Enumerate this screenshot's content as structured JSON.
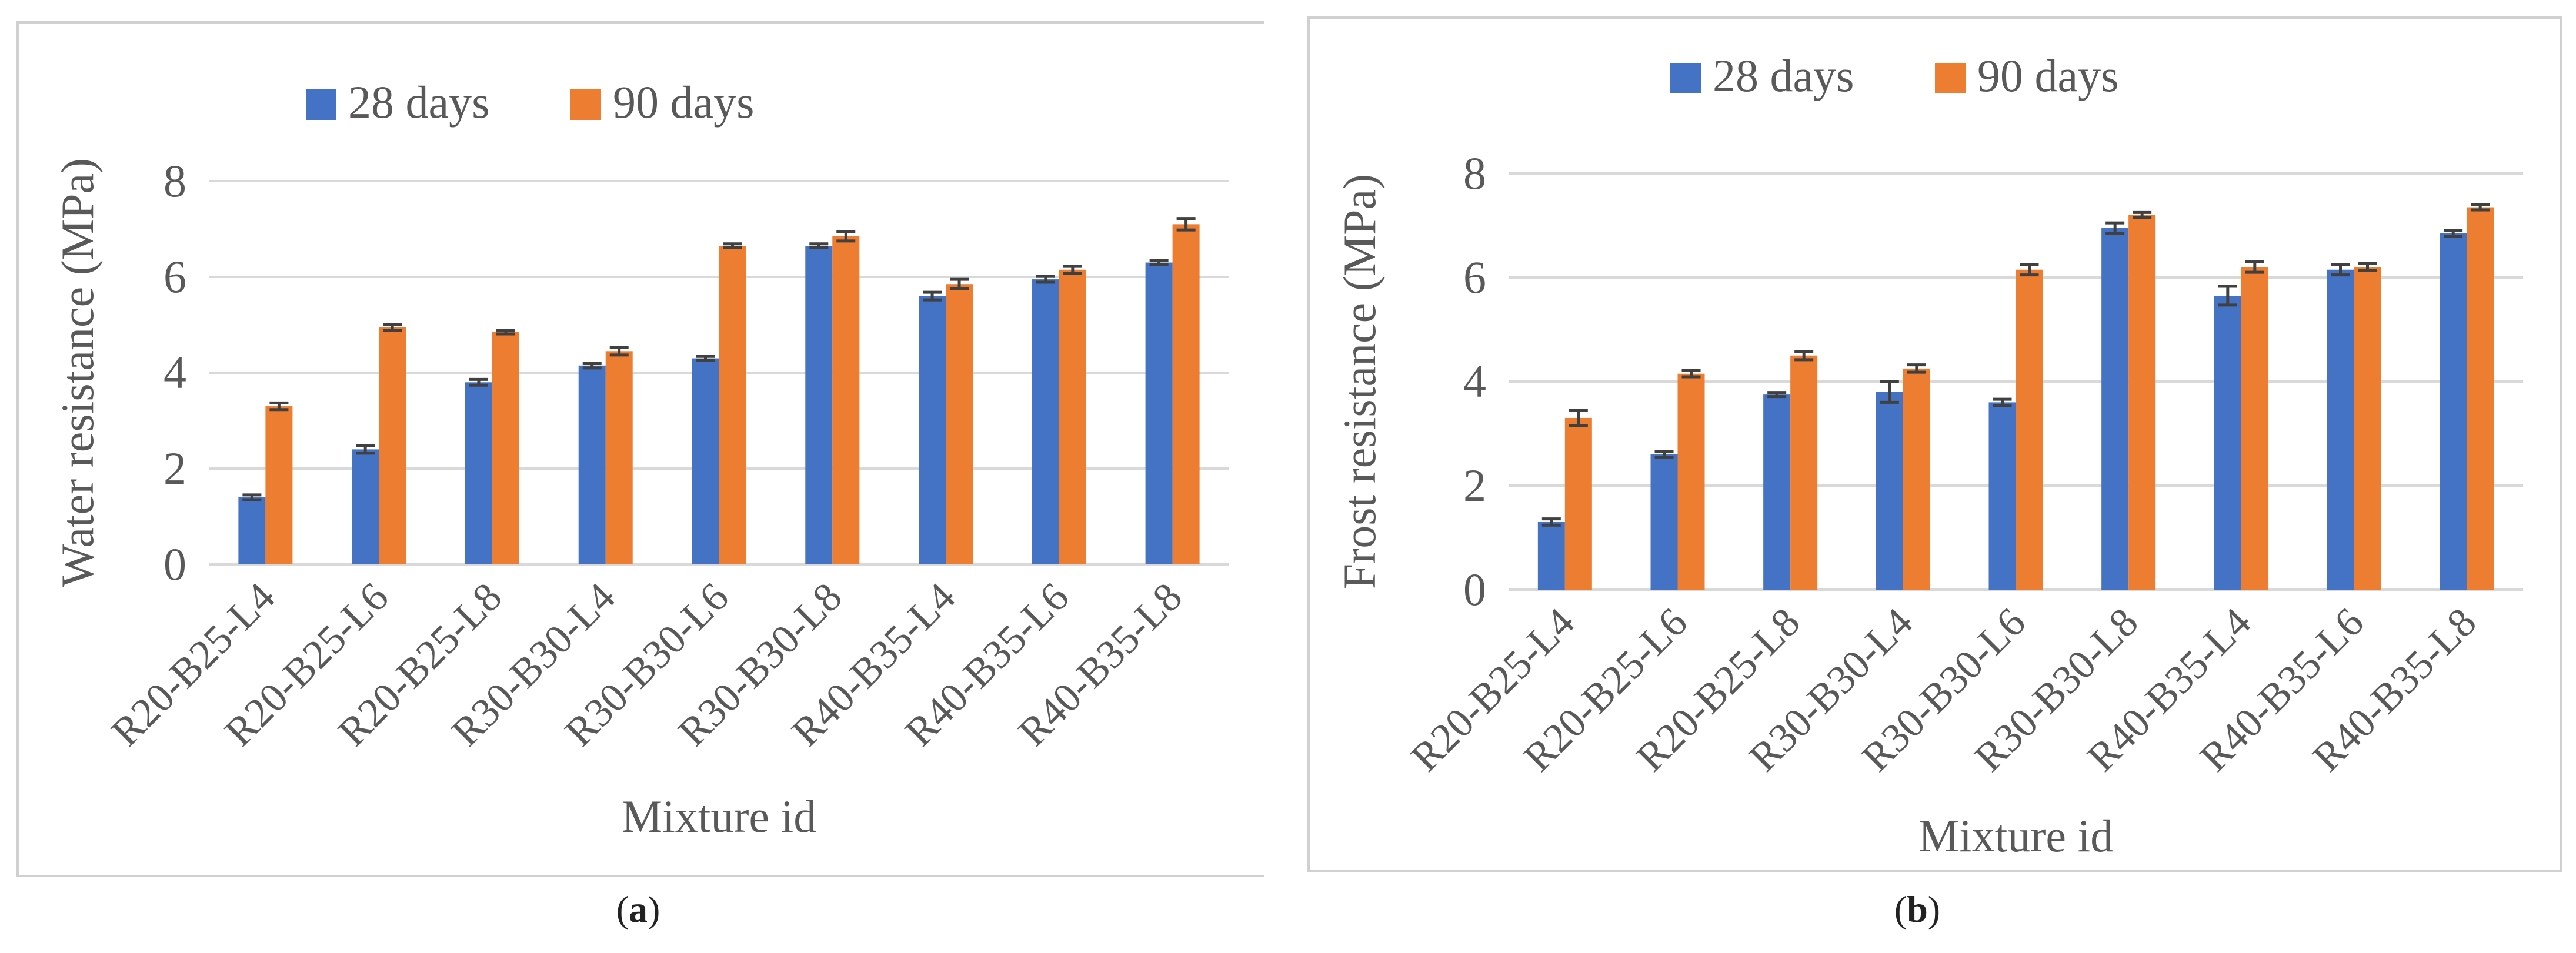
{
  "chart_data": [
    {
      "type": "bar",
      "title": "",
      "xlabel": "Mixture id",
      "ylabel": "Water resistance (MPa)",
      "ylim": [
        0,
        8
      ],
      "yticks": [
        "0",
        "2",
        "4",
        "6",
        "8"
      ],
      "grid": true,
      "legend_position": "top",
      "categories": [
        "R20-B25-L4",
        "R20-B25-L6",
        "R20-B25-L8",
        "R30-B30-L4",
        "R30-B30-L6",
        "R30-B30-L8",
        "R40-B35-L4",
        "R40-B35-L6",
        "R40-B35-L8"
      ],
      "series": [
        {
          "name": "28 days",
          "color": "#4472C4",
          "values": [
            1.4,
            2.4,
            3.8,
            4.15,
            4.3,
            6.65,
            5.6,
            5.95,
            6.3
          ],
          "errors": [
            0.05,
            0.08,
            0.06,
            0.05,
            0.04,
            0.04,
            0.08,
            0.06,
            0.04
          ]
        },
        {
          "name": "90 days",
          "color": "#ED7D31",
          "values": [
            3.3,
            4.95,
            4.85,
            4.45,
            6.65,
            6.85,
            5.85,
            6.15,
            7.1
          ],
          "errors": [
            0.07,
            0.06,
            0.04,
            0.08,
            0.04,
            0.1,
            0.1,
            0.07,
            0.12
          ]
        }
      ],
      "caption_letter": "a"
    },
    {
      "type": "bar",
      "title": "",
      "xlabel": "Mixture id",
      "ylabel": "Frost resistance (MPa)",
      "ylim": [
        0,
        8
      ],
      "yticks": [
        "0",
        "2",
        "4",
        "6",
        "8"
      ],
      "grid": true,
      "legend_position": "top",
      "categories": [
        "R20-B25-L4",
        "R20-B25-L6",
        "R20-B25-L8",
        "R30-B30-L4",
        "R30-B30-L6",
        "R30-B30-L8",
        "R40-B35-L4",
        "R40-B35-L6",
        "R40-B35-L8"
      ],
      "series": [
        {
          "name": "28 days",
          "color": "#4472C4",
          "values": [
            1.3,
            2.6,
            3.75,
            3.8,
            3.6,
            6.95,
            5.65,
            6.15,
            6.85
          ],
          "errors": [
            0.06,
            0.06,
            0.04,
            0.2,
            0.06,
            0.1,
            0.18,
            0.1,
            0.06
          ]
        },
        {
          "name": "90 days",
          "color": "#ED7D31",
          "values": [
            3.3,
            4.15,
            4.5,
            4.25,
            6.15,
            7.2,
            6.2,
            6.2,
            7.35
          ],
          "errors": [
            0.15,
            0.06,
            0.08,
            0.07,
            0.1,
            0.05,
            0.1,
            0.07,
            0.05
          ]
        }
      ],
      "caption_letter": "b"
    }
  ]
}
